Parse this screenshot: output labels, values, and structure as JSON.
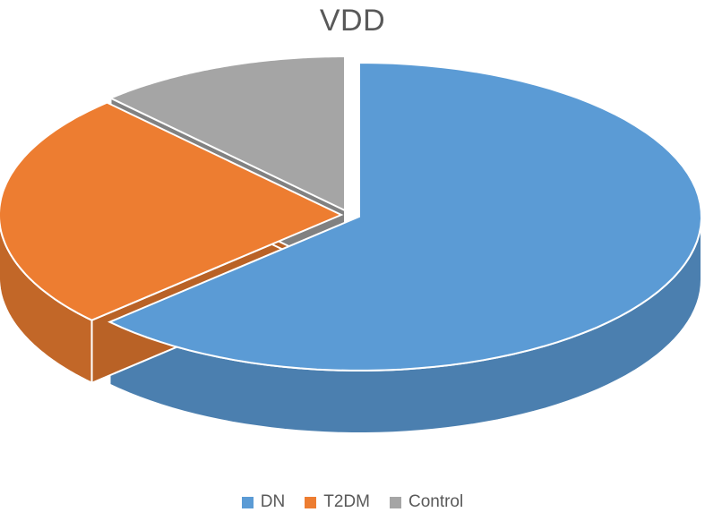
{
  "chart_data": {
    "type": "pie",
    "title": "VDD",
    "categories": [
      "DN",
      "T2DM",
      "Control"
    ],
    "values": [
      63,
      25,
      12
    ],
    "colors": [
      "#5B9BD5",
      "#ED7D31",
      "#A5A5A5"
    ],
    "legend_position": "bottom",
    "style": "3d-exploded"
  }
}
